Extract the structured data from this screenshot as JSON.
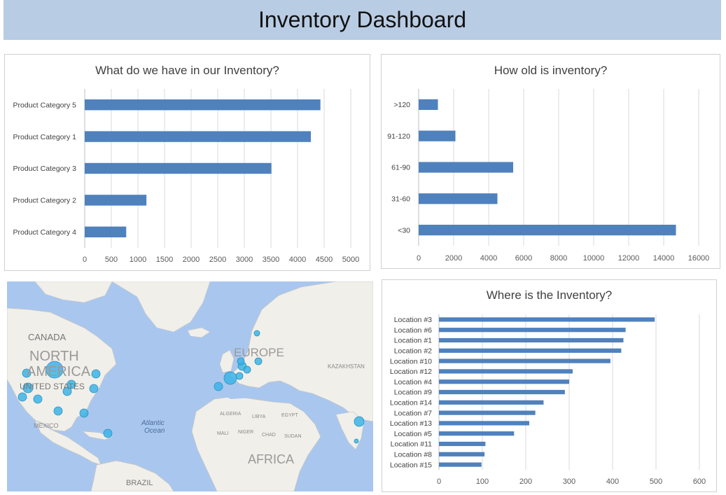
{
  "header": {
    "title": "Inventory Dashboard"
  },
  "chart_data": [
    {
      "type": "bar",
      "title": "What do we have in our Inventory?",
      "orientation": "horizontal",
      "categories": [
        "Product Category 5",
        "Product Category 1",
        "Product Category 3",
        "Product Category 2",
        "Product Category 4"
      ],
      "values": [
        4430,
        4250,
        3510,
        1160,
        780
      ],
      "xlim": [
        0,
        5000
      ],
      "ticks": [
        0,
        500,
        1000,
        1500,
        2000,
        2500,
        3000,
        3500,
        4000,
        4500,
        5000
      ],
      "grid": true,
      "color": "#4f81bd"
    },
    {
      "type": "bar",
      "title": "How old is inventory?",
      "orientation": "horizontal",
      "categories": [
        ">120",
        "91-120",
        "61-90",
        "31-60",
        "<30"
      ],
      "values": [
        1100,
        2100,
        5400,
        4500,
        14700
      ],
      "xlim": [
        0,
        16000
      ],
      "ticks": [
        0,
        2000,
        4000,
        6000,
        8000,
        10000,
        12000,
        14000,
        16000
      ],
      "grid": true,
      "color": "#4f81bd"
    },
    {
      "type": "bar",
      "title": "Where is the Inventory?",
      "orientation": "horizontal",
      "categories": [
        "Location #3",
        "Location #6",
        "Location #1",
        "Location #2",
        "Location #10",
        "Location #12",
        "Location #4",
        "Location #9",
        "Location #14",
        "Location #7",
        "Location #13",
        "Location #5",
        "Location #11",
        "Location #8",
        "Location #15"
      ],
      "values": [
        497,
        430,
        425,
        420,
        395,
        308,
        300,
        290,
        241,
        222,
        208,
        173,
        107,
        105,
        98
      ],
      "xlim": [
        0,
        600
      ],
      "ticks": [
        0,
        100,
        200,
        300,
        400,
        500,
        600
      ],
      "grid": true,
      "color": "#4f81bd"
    }
  ],
  "map": {
    "labels": [
      "CANADA",
      "NORTH",
      "AMERICA",
      "UNITED STATES",
      "MEXICO",
      "Atlantic",
      "Ocean",
      "EUROPE",
      "KAZAKHSTAN",
      "ALGERIA",
      "LIBYA",
      "EGYPT",
      "AFRICA",
      "BRAZIL",
      "SUDAN",
      "MALI",
      "NIGER",
      "CHAD"
    ],
    "bubble_color": "#3cb4e6"
  }
}
